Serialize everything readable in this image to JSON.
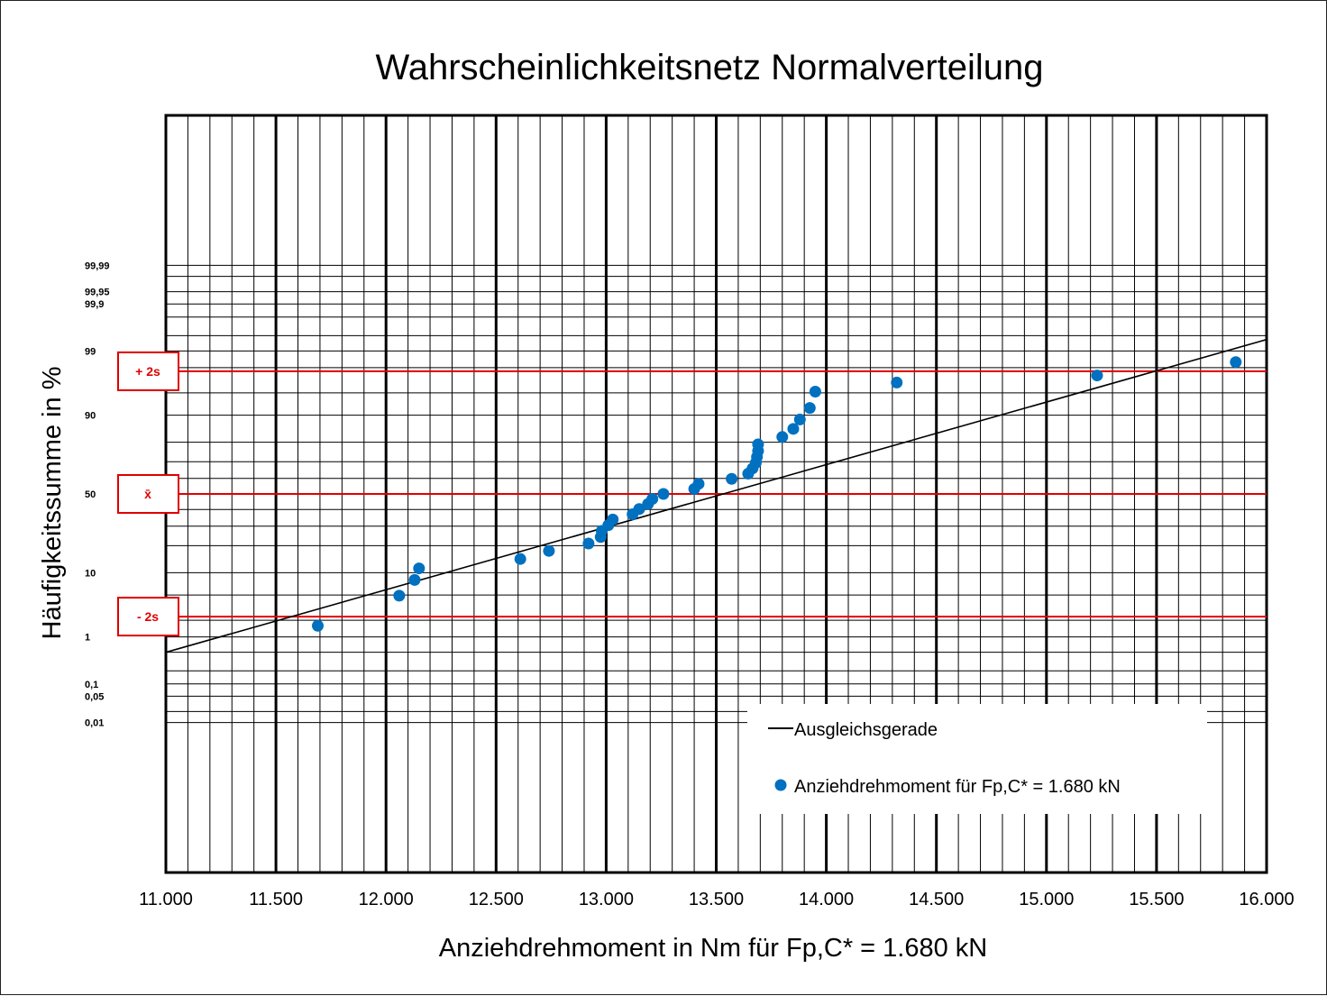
{
  "chart_data": {
    "type": "scatter",
    "title": "Wahrscheinlichkeitsnetz Normalverteilung",
    "xlabel": "Anziehdrehmoment  in Nm für Fp,C* = 1.680 kN",
    "ylabel": "Häufigkeitssumme in %",
    "x_scale": "linear",
    "y_scale": "normal-probability",
    "xlim": [
      11000,
      16000
    ],
    "ylim": [
      0.005,
      99.995
    ],
    "grid": true,
    "x_ticks": [
      11000,
      11500,
      12000,
      12500,
      13000,
      13500,
      14000,
      14500,
      15000,
      15500,
      16000
    ],
    "x_tick_labels": [
      "11.000",
      "11.500",
      "12.000",
      "12.500",
      "13.000",
      "13.500",
      "14.000",
      "14.500",
      "15.000",
      "15.500",
      "16.000"
    ],
    "y_tick_labels": [
      {
        "value": 99.99,
        "label": "99,99"
      },
      {
        "value": 99.95,
        "label": "99,95"
      },
      {
        "value": 99.9,
        "label": "99,9"
      },
      {
        "value": 99,
        "label": "99"
      },
      {
        "value": 90,
        "label": "90"
      },
      {
        "value": 50,
        "label": "50"
      },
      {
        "value": 10,
        "label": "10"
      },
      {
        "value": 1,
        "label": "1"
      },
      {
        "value": 0.1,
        "label": "0,1"
      },
      {
        "value": 0.05,
        "label": "0,05"
      },
      {
        "value": 0.01,
        "label": "0,01"
      }
    ],
    "reference_lines": [
      {
        "label": "+ 2s",
        "value": 97.7,
        "color": "#e00000"
      },
      {
        "label": "x̄",
        "value": 50,
        "color": "#e00000"
      },
      {
        "label": "- 2s",
        "value": 2.3,
        "color": "#e00000"
      }
    ],
    "legend": {
      "placement": "bottom-right",
      "entries": [
        {
          "label": "Ausgleichsgerade",
          "kind": "line",
          "color": "#000000"
        },
        {
          "label": "Anziehdrehmoment für Fp,C* = 1.680 kN",
          "kind": "marker",
          "color": "#0070c0"
        }
      ]
    },
    "series": [
      {
        "name": "Anziehdrehmoment für Fp,C* = 1.680 kN",
        "kind": "scatter",
        "color": "#0070c0",
        "points": [
          {
            "x": 11690,
            "y": 1.6
          },
          {
            "x": 12060,
            "y": 4.9
          },
          {
            "x": 12130,
            "y": 8.1
          },
          {
            "x": 12150,
            "y": 11.3
          },
          {
            "x": 12610,
            "y": 14.5
          },
          {
            "x": 12740,
            "y": 17.7
          },
          {
            "x": 12920,
            "y": 21.0
          },
          {
            "x": 12975,
            "y": 24.2
          },
          {
            "x": 12980,
            "y": 27.4
          },
          {
            "x": 13010,
            "y": 30.6
          },
          {
            "x": 13030,
            "y": 33.9
          },
          {
            "x": 13120,
            "y": 37.1
          },
          {
            "x": 13150,
            "y": 40.3
          },
          {
            "x": 13190,
            "y": 43.5
          },
          {
            "x": 13210,
            "y": 46.8
          },
          {
            "x": 13260,
            "y": 50.0
          },
          {
            "x": 13400,
            "y": 53.2
          },
          {
            "x": 13420,
            "y": 56.5
          },
          {
            "x": 13570,
            "y": 59.7
          },
          {
            "x": 13645,
            "y": 62.9
          },
          {
            "x": 13665,
            "y": 66.1
          },
          {
            "x": 13680,
            "y": 69.4
          },
          {
            "x": 13685,
            "y": 72.6
          },
          {
            "x": 13690,
            "y": 75.8
          },
          {
            "x": 13690,
            "y": 79.0
          },
          {
            "x": 13800,
            "y": 82.3
          },
          {
            "x": 13850,
            "y": 85.5
          },
          {
            "x": 13880,
            "y": 88.7
          },
          {
            "x": 13925,
            "y": 91.9
          },
          {
            "x": 13950,
            "y": 95.2
          },
          {
            "x": 14320,
            "y": 96.5
          },
          {
            "x": 15230,
            "y": 97.3
          },
          {
            "x": 15860,
            "y": 98.4
          }
        ]
      },
      {
        "name": "Ausgleichsgerade",
        "kind": "line",
        "color": "#000000",
        "points": [
          {
            "x": 11000,
            "y": 0.5
          },
          {
            "x": 16000,
            "y": 99.4
          }
        ]
      }
    ]
  }
}
